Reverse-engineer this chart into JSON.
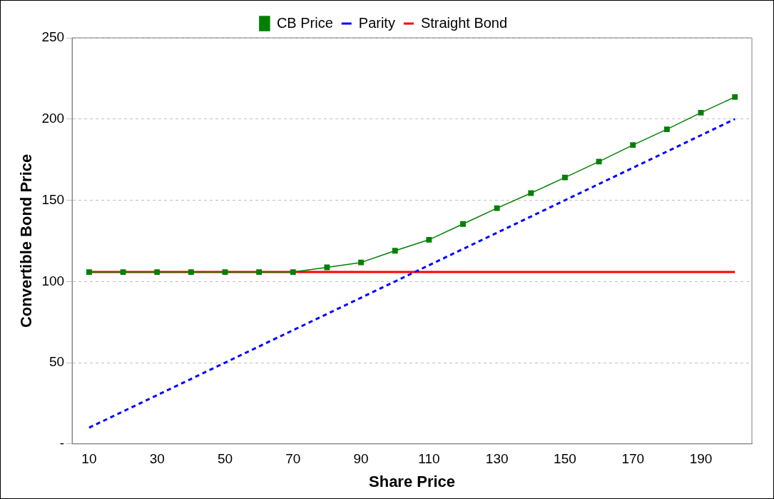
{
  "chart_data": {
    "type": "line",
    "xlabel": "Share Price",
    "ylabel": "Convertible Bond Price",
    "categories": [
      "10",
      null,
      "30",
      null,
      "50",
      null,
      "70",
      null,
      "90",
      null,
      "110",
      null,
      "130",
      null,
      "150",
      null,
      "170",
      null,
      "190",
      null
    ],
    "series": [
      {
        "name": "CB Price",
        "color": "#008000",
        "marker": "square",
        "line_style": "solid",
        "values": [
          105.8,
          105.8,
          105.8,
          105.8,
          105.8,
          105.8,
          105.8,
          108.7,
          111.7,
          118.9,
          125.7,
          135.4,
          145.1,
          154.4,
          164,
          173.8,
          184,
          193.7,
          203.9,
          213.6
        ]
      },
      {
        "name": "Parity",
        "color": "#0000ff",
        "marker": "none",
        "line_style": "dashed",
        "values": [
          10,
          20,
          30,
          40,
          50,
          60,
          70,
          80,
          90,
          100,
          110,
          120,
          130,
          140,
          150,
          160,
          170,
          180,
          190,
          200
        ]
      },
      {
        "name": "Straight Bond",
        "color": "#ff0000",
        "marker": "none",
        "line_style": "solid",
        "values": [
          105.8,
          105.8,
          105.8,
          105.8,
          105.8,
          105.8,
          105.8,
          105.8,
          105.8,
          105.8,
          105.8,
          105.8,
          105.8,
          105.8,
          105.8,
          105.8,
          105.8,
          105.8,
          105.8,
          105.8
        ]
      }
    ],
    "ylim": [
      0,
      250
    ],
    "yticks": [
      {
        "value": 0,
        "label": "-"
      },
      50,
      100,
      150,
      200,
      250
    ],
    "grid": "y",
    "legend": "top"
  }
}
